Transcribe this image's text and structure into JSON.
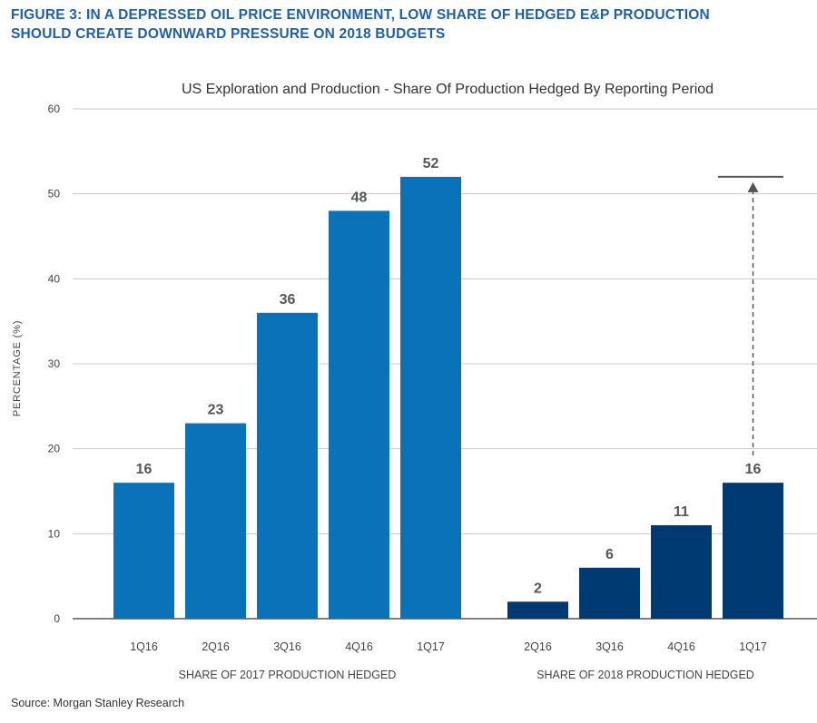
{
  "figure": {
    "title_line1": "FIGURE 3: IN A DEPRESSED OIL PRICE ENVIRONMENT, LOW SHARE OF HEDGED E&P PRODUCTION",
    "title_line2": "SHOULD CREATE DOWNWARD PRESSURE ON 2018 BUDGETS",
    "source": "Source: Morgan Stanley Research"
  },
  "colors": {
    "title": "#1f5fa6",
    "series_2017": "#0a72b9",
    "series_2018": "#003a73",
    "grid": "#c8c8c8",
    "text": "#444444",
    "value_label": "#555555"
  },
  "chart_data": {
    "type": "bar",
    "title": "US Exploration and Production - Share Of Production Hedged By Reporting Period",
    "ylabel": "PERCENTAGE (%)",
    "ylim": [
      0,
      60
    ],
    "yticks": [
      0,
      10,
      20,
      30,
      40,
      50,
      60
    ],
    "grid": true,
    "groups": [
      {
        "label": "SHARE OF 2017 PRODUCTION HEDGED",
        "categories": [
          "1Q16",
          "2Q16",
          "3Q16",
          "4Q16",
          "1Q17"
        ],
        "values": [
          16,
          23,
          36,
          48,
          52
        ]
      },
      {
        "label": "SHARE OF 2018 PRODUCTION HEDGED",
        "categories": [
          "2Q16",
          "3Q16",
          "4Q16",
          "1Q17"
        ],
        "values": [
          2,
          6,
          11,
          16
        ]
      }
    ],
    "annotation": {
      "type": "dashed-arrow",
      "from_value": 16,
      "to_value": 52,
      "group": 1,
      "category": "1Q17"
    }
  }
}
